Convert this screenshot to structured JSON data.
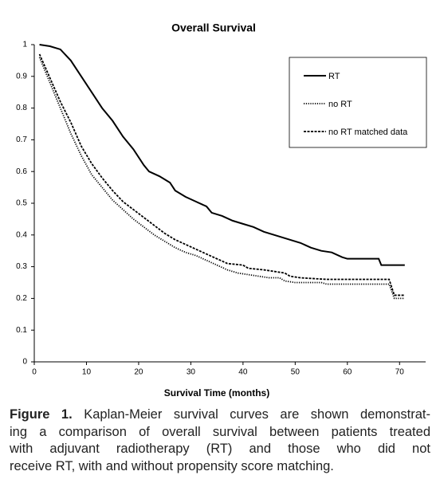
{
  "chart_data": {
    "type": "line",
    "title": "Overall Survival",
    "x_label": "Survival Time (months)",
    "xlim": [
      0,
      75
    ],
    "xticks": [
      0,
      10,
      20,
      30,
      40,
      50,
      60,
      70
    ],
    "ylim": [
      0,
      1
    ],
    "yticks": [
      0,
      0.1,
      0.2,
      0.3,
      0.4,
      0.5,
      0.6,
      0.7,
      0.8,
      0.9,
      1
    ],
    "legend": "top-right",
    "series": [
      {
        "name": "RT",
        "color": "#000000",
        "style": "solid",
        "x": [
          1,
          3,
          5,
          7,
          9,
          11,
          13,
          15,
          17,
          19,
          21,
          22,
          24,
          26,
          27,
          29,
          31,
          33,
          34,
          36,
          38,
          40,
          42,
          44,
          46,
          48,
          49,
          51,
          53,
          55,
          57,
          59,
          60,
          66,
          66.5,
          71
        ],
        "values": [
          1.0,
          0.995,
          0.985,
          0.95,
          0.9,
          0.85,
          0.8,
          0.76,
          0.71,
          0.67,
          0.62,
          0.6,
          0.585,
          0.565,
          0.54,
          0.52,
          0.505,
          0.49,
          0.47,
          0.46,
          0.445,
          0.435,
          0.425,
          0.41,
          0.4,
          0.39,
          0.385,
          0.375,
          0.36,
          0.35,
          0.345,
          0.33,
          0.325,
          0.325,
          0.305,
          0.305
        ]
      },
      {
        "name": "no RT",
        "color": "#000000",
        "style": "dotted",
        "x": [
          1,
          3,
          5,
          7,
          9,
          11,
          13,
          15,
          17,
          19,
          21,
          23,
          25,
          27,
          29,
          31,
          33,
          35,
          37,
          39,
          41,
          43,
          45,
          47,
          48,
          50,
          55,
          56,
          68,
          69,
          71
        ],
        "values": [
          0.96,
          0.88,
          0.8,
          0.72,
          0.65,
          0.59,
          0.55,
          0.51,
          0.48,
          0.45,
          0.425,
          0.4,
          0.38,
          0.36,
          0.345,
          0.335,
          0.32,
          0.305,
          0.29,
          0.28,
          0.275,
          0.27,
          0.265,
          0.265,
          0.255,
          0.25,
          0.25,
          0.245,
          0.245,
          0.2,
          0.2
        ]
      },
      {
        "name": "no RT matched data",
        "color": "#000000",
        "style": "dashed",
        "x": [
          1,
          3,
          5,
          7,
          9,
          11,
          13,
          15,
          17,
          19,
          21,
          23,
          25,
          27,
          29,
          31,
          33,
          35,
          37,
          40,
          41,
          44,
          46,
          48,
          49,
          51,
          56,
          68,
          69,
          71
        ],
        "values": [
          0.97,
          0.895,
          0.82,
          0.755,
          0.68,
          0.625,
          0.58,
          0.54,
          0.505,
          0.48,
          0.455,
          0.43,
          0.405,
          0.385,
          0.37,
          0.355,
          0.34,
          0.325,
          0.31,
          0.305,
          0.295,
          0.29,
          0.285,
          0.28,
          0.27,
          0.265,
          0.26,
          0.26,
          0.21,
          0.21
        ]
      }
    ]
  },
  "caption": {
    "label": "Figure 1.",
    "lines": [
      "Kaplan-Meier survival curves are shown demonstrat-",
      "ing a comparison of overall survival between patients treated",
      "with adjuvant radiotherapy (RT) and those who did not",
      "receive RT, with and without propensity score matching."
    ]
  }
}
